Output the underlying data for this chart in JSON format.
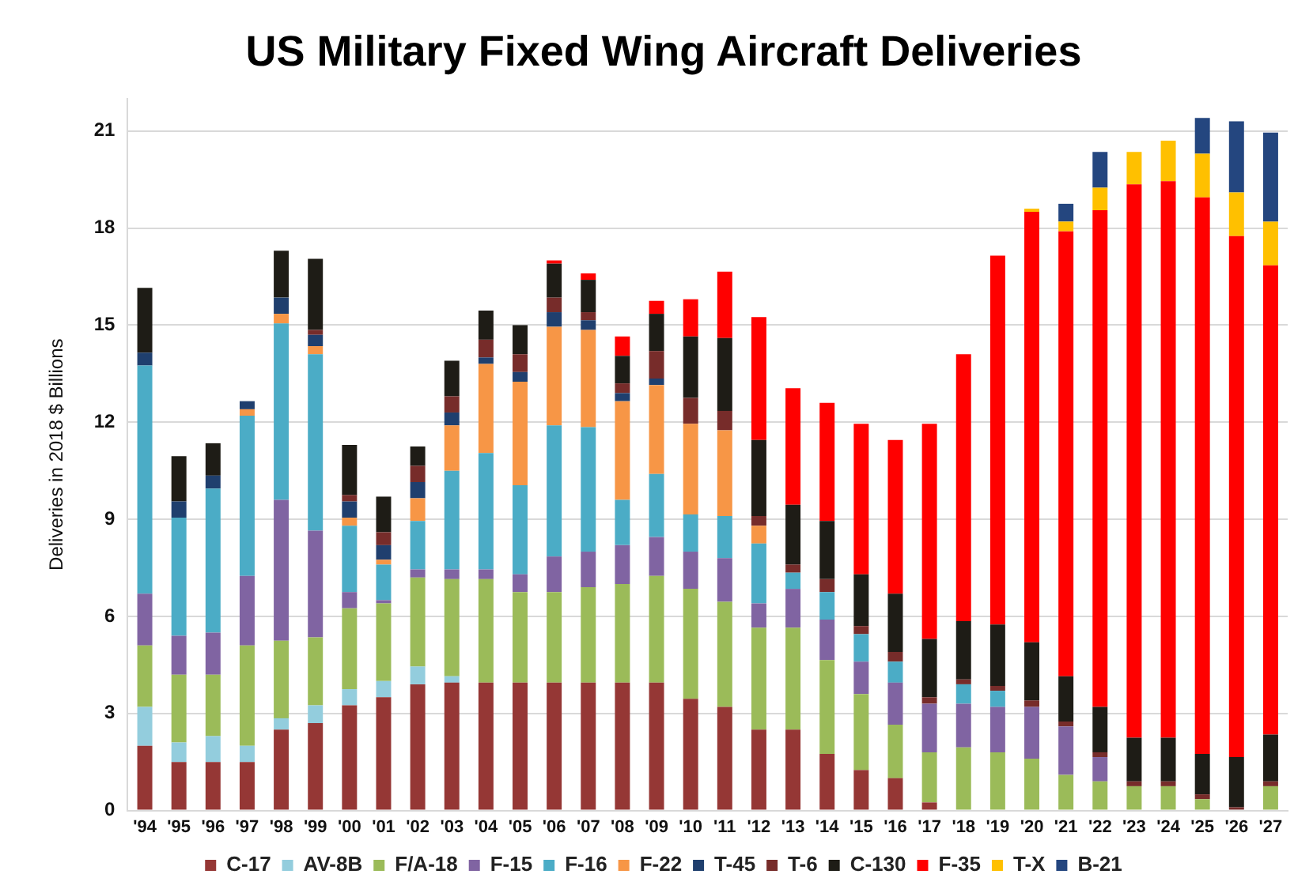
{
  "chart_data": {
    "type": "bar",
    "title": "US Military Fixed Wing Aircraft Deliveries",
    "ylabel": "Deliveries in 2018 $ Billions",
    "categories": [
      "'94",
      "'95",
      "'96",
      "'97",
      "'98",
      "'99",
      "'00",
      "'01",
      "'02",
      "'03",
      "'04",
      "'05",
      "'06",
      "'07",
      "'08",
      "'09",
      "'10",
      "'11",
      "'12",
      "'13",
      "'14",
      "'15",
      "'16",
      "'17",
      "'18",
      "'19",
      "'20",
      "'21",
      "'22",
      "'23",
      "'24",
      "'25",
      "'26",
      "'27"
    ],
    "stacked": true,
    "ylim": [
      0,
      22
    ],
    "yticks": [
      0,
      3,
      6,
      9,
      12,
      15,
      18,
      21
    ],
    "grid": "y",
    "legend": "bottom",
    "series": [
      {
        "name": "C-17",
        "color": "#953735",
        "values": [
          2.0,
          1.5,
          1.5,
          1.5,
          2.5,
          2.7,
          3.25,
          3.5,
          3.9,
          3.95,
          3.95,
          3.95,
          3.95,
          3.95,
          3.95,
          3.95,
          3.45,
          3.2,
          2.5,
          2.5,
          1.75,
          1.25,
          1.0,
          0.25,
          null,
          null,
          null,
          null,
          null,
          null,
          null,
          null,
          null,
          null
        ]
      },
      {
        "name": "AV-8B",
        "color": "#93cddd",
        "values": [
          1.2,
          0.6,
          0.8,
          0.5,
          0.35,
          0.55,
          0.5,
          0.5,
          0.55,
          0.2,
          null,
          null,
          null,
          null,
          null,
          null,
          null,
          null,
          null,
          null,
          null,
          null,
          null,
          null,
          null,
          null,
          null,
          null,
          null,
          null,
          null,
          null,
          null,
          null
        ]
      },
      {
        "name": "F/A-18",
        "color": "#9bbb59",
        "values": [
          1.9,
          2.1,
          1.9,
          3.1,
          2.4,
          2.1,
          2.5,
          2.4,
          2.75,
          3.0,
          3.2,
          2.8,
          2.8,
          2.95,
          3.05,
          3.3,
          3.4,
          3.25,
          3.15,
          3.15,
          2.9,
          2.35,
          1.65,
          1.55,
          1.95,
          1.8,
          1.6,
          1.1,
          0.9,
          0.75,
          0.75,
          0.35,
          null,
          0.75
        ]
      },
      {
        "name": "F-15",
        "color": "#8064a2",
        "values": [
          1.6,
          1.2,
          1.3,
          2.15,
          4.35,
          3.3,
          0.5,
          0.1,
          0.25,
          0.3,
          0.3,
          0.55,
          1.1,
          1.1,
          1.2,
          1.2,
          1.15,
          1.35,
          0.75,
          1.2,
          1.25,
          1.0,
          1.3,
          1.5,
          1.35,
          1.4,
          1.6,
          1.5,
          0.75,
          null,
          null,
          null,
          null,
          null
        ]
      },
      {
        "name": "F-16",
        "color": "#4bacc6",
        "values": [
          7.05,
          3.65,
          4.45,
          4.95,
          5.45,
          5.45,
          2.05,
          1.1,
          1.5,
          3.05,
          3.6,
          2.75,
          4.05,
          3.85,
          1.4,
          1.95,
          1.15,
          1.3,
          1.85,
          0.5,
          0.85,
          0.85,
          0.65,
          null,
          0.6,
          0.5,
          null,
          null,
          null,
          null,
          null,
          null,
          null,
          null
        ]
      },
      {
        "name": "F-22",
        "color": "#f79646",
        "values": [
          null,
          null,
          null,
          0.2,
          0.3,
          0.25,
          0.25,
          0.15,
          0.7,
          1.4,
          2.75,
          3.2,
          3.05,
          3.0,
          3.05,
          2.75,
          2.8,
          2.65,
          0.55,
          null,
          null,
          null,
          null,
          null,
          null,
          null,
          null,
          null,
          null,
          null,
          null,
          null,
          null,
          null
        ]
      },
      {
        "name": "T-45",
        "color": "#1f3f6e",
        "values": [
          0.4,
          0.5,
          0.4,
          0.25,
          0.5,
          0.35,
          0.5,
          0.45,
          0.5,
          0.4,
          0.2,
          0.3,
          0.45,
          0.3,
          0.25,
          0.2,
          null,
          null,
          null,
          null,
          null,
          null,
          null,
          null,
          null,
          null,
          null,
          null,
          null,
          null,
          null,
          null,
          null,
          null
        ]
      },
      {
        "name": "T-6",
        "color": "#772c2a",
        "values": [
          null,
          null,
          null,
          null,
          null,
          0.15,
          0.2,
          0.4,
          0.5,
          0.5,
          0.55,
          0.55,
          0.45,
          0.25,
          0.3,
          0.85,
          0.8,
          0.6,
          0.3,
          0.25,
          0.4,
          0.25,
          0.3,
          0.2,
          0.15,
          0.15,
          0.2,
          0.15,
          0.15,
          0.15,
          0.15,
          0.15,
          0.1,
          0.15
        ]
      },
      {
        "name": "C-130",
        "color": "#1e1c16",
        "values": [
          2.0,
          1.4,
          1.0,
          null,
          1.45,
          2.2,
          1.55,
          1.1,
          0.6,
          1.1,
          0.9,
          0.9,
          1.05,
          1.0,
          0.85,
          1.15,
          1.9,
          2.25,
          2.35,
          1.85,
          1.8,
          1.6,
          1.8,
          1.8,
          1.8,
          1.9,
          1.8,
          1.4,
          1.4,
          1.35,
          1.35,
          1.25,
          1.55,
          1.45
        ]
      },
      {
        "name": "F-35",
        "color": "#ff0000",
        "values": [
          null,
          null,
          null,
          null,
          null,
          null,
          null,
          null,
          null,
          null,
          null,
          null,
          0.1,
          0.2,
          0.6,
          0.4,
          1.15,
          2.05,
          3.8,
          3.6,
          3.65,
          4.65,
          4.75,
          6.65,
          8.25,
          11.4,
          13.3,
          13.75,
          15.35,
          17.1,
          17.2,
          17.2,
          16.1,
          14.5
        ]
      },
      {
        "name": "T-X",
        "color": "#ffc000",
        "values": [
          null,
          null,
          null,
          null,
          null,
          null,
          null,
          null,
          null,
          null,
          null,
          null,
          null,
          null,
          null,
          null,
          null,
          null,
          null,
          null,
          null,
          null,
          null,
          null,
          null,
          null,
          0.1,
          0.3,
          0.7,
          1.0,
          1.25,
          1.35,
          1.35,
          1.35
        ]
      },
      {
        "name": "B-21",
        "color": "#24467f",
        "values": [
          null,
          null,
          null,
          null,
          null,
          null,
          null,
          null,
          null,
          null,
          null,
          null,
          null,
          null,
          null,
          null,
          null,
          null,
          null,
          null,
          null,
          null,
          null,
          null,
          null,
          null,
          null,
          0.55,
          1.1,
          null,
          null,
          1.1,
          2.2,
          2.75
        ]
      }
    ]
  }
}
